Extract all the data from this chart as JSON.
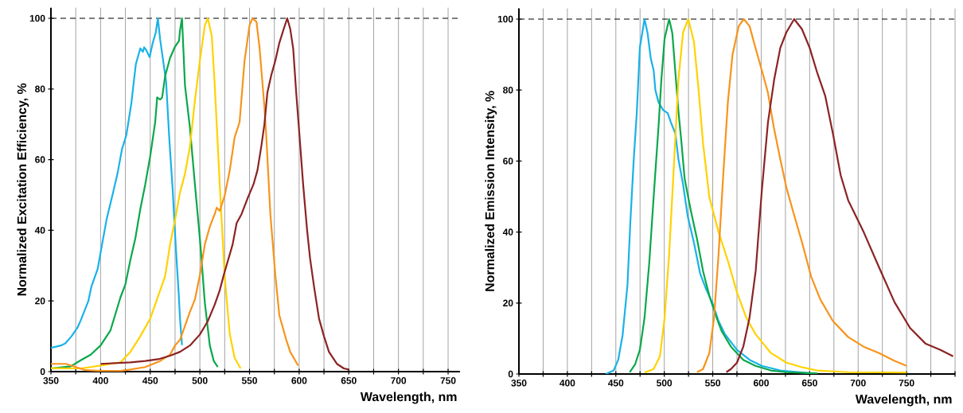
{
  "chart_data": [
    {
      "type": "line",
      "ylabel": "Normalized Excitation Efficiency, %",
      "xlabel": "Wavelength, nm",
      "xlim": [
        350,
        762
      ],
      "ylim": [
        0,
        103
      ],
      "xticks": [
        350,
        {
          "value": 375,
          "label": null
        },
        400,
        {
          "value": 425,
          "label": null
        },
        450,
        {
          "value": 475,
          "label": null
        },
        500,
        {
          "value": 525,
          "label": null
        },
        550,
        {
          "value": 575,
          "label": null
        },
        600,
        {
          "value": 625,
          "label": null
        },
        650,
        {
          "value": 675,
          "label": null
        },
        700,
        {
          "value": 725,
          "label": null
        },
        750
      ],
      "yticks": [
        0,
        20,
        40,
        60,
        80,
        100
      ],
      "grid": "x",
      "ref_lines": [
        {
          "axis": "y",
          "value": 100,
          "line_style": "dashed",
          "color": "#000000"
        }
      ],
      "series": [
        {
          "color": "#1ab2e8",
          "x": [
            350,
            360,
            364.5,
            370.7,
            377,
            380,
            387.7,
            390.7,
            397,
            401.5,
            406,
            412,
            417,
            421.6,
            426,
            431,
            435.5,
            440,
            442.6,
            443.8,
            446,
            449.4,
            452.5,
            455.6,
            457.7,
            460,
            463,
            466,
            469.4,
            472.5,
            475.6,
            478.7,
            480,
            482
          ],
          "values": [
            6.7,
            7.4,
            8,
            10,
            12.6,
            14.5,
            20,
            24,
            29,
            36,
            43,
            50,
            56,
            63,
            67,
            76,
            87,
            91.5,
            90.5,
            91.8,
            91,
            89,
            93,
            96,
            100,
            94,
            88,
            82,
            65,
            52,
            36,
            22,
            15,
            7.5
          ]
        },
        {
          "color": "#0aa84a",
          "x": [
            350,
            370,
            380,
            390,
            400,
            410,
            420,
            425,
            430,
            435,
            440,
            445,
            450,
            455,
            457,
            460,
            462,
            465,
            470,
            475,
            479,
            480,
            482,
            485,
            490,
            495,
            500,
            505,
            510,
            514,
            518
          ],
          "values": [
            0.9,
            1.5,
            3.2,
            4.8,
            7.4,
            11.7,
            21,
            24.7,
            31.6,
            37.7,
            46,
            53,
            61,
            70.6,
            77.6,
            77,
            77.6,
            83.6,
            88.8,
            92,
            93.6,
            96.6,
            100,
            81,
            69,
            53,
            37.7,
            19.5,
            7.4,
            3,
            1.3
          ]
        },
        {
          "color": "#ffd200",
          "x": [
            350,
            370,
            380,
            390,
            400,
            410,
            420,
            430,
            440,
            450,
            460,
            465,
            470,
            475,
            480,
            485,
            490,
            495,
            500,
            505,
            508,
            512,
            515,
            520,
            525,
            530,
            535,
            541
          ],
          "values": [
            1,
            0.9,
            0.9,
            1.3,
            1.7,
            2.2,
            2.6,
            5.6,
            10,
            15,
            23,
            27,
            36,
            43,
            50.7,
            56,
            63.7,
            76.7,
            88,
            98,
            100,
            95,
            81,
            53,
            27,
            10.8,
            3.9,
            0.9
          ]
        },
        {
          "color": "#f7941d",
          "x": [
            350,
            365,
            375,
            385,
            400,
            420,
            430,
            445,
            460,
            470,
            475,
            480,
            490,
            495,
            500,
            505,
            510,
            515,
            517,
            520,
            525,
            530,
            535,
            540,
            545,
            550,
            553,
            557,
            560,
            565,
            567,
            571,
            576,
            580,
            587,
            591,
            599
          ],
          "values": [
            2.2,
            2.2,
            1.3,
            0.4,
            0.2,
            0.2,
            0.6,
            1.3,
            3,
            4.8,
            7.4,
            9,
            16.9,
            20.4,
            27.3,
            36,
            41,
            44.6,
            46.4,
            45.5,
            49.8,
            56.8,
            66.3,
            70.6,
            88,
            98,
            100,
            99,
            92,
            75,
            66,
            44.6,
            27.3,
            16,
            9,
            5.6,
            1.7
          ]
        },
        {
          "color": "#8b2323",
          "x": [
            400,
            430,
            445,
            458,
            470,
            480,
            490,
            500,
            508,
            515,
            520,
            524,
            533,
            537,
            542,
            548,
            554,
            558,
            562,
            565,
            568,
            572,
            576,
            580,
            584,
            588,
            591,
            594,
            597,
            600,
            604,
            608,
            611,
            615,
            620,
            625,
            630,
            638,
            645,
            650
          ],
          "values": [
            2.2,
            2.6,
            3,
            3.5,
            4.5,
            5.6,
            7.4,
            10.5,
            14.3,
            19,
            23,
            27.3,
            36,
            42,
            44.6,
            49,
            53,
            57,
            64,
            70,
            79,
            84,
            88,
            93,
            96.6,
            100,
            97,
            91.4,
            79,
            68,
            53,
            40,
            32,
            24,
            15,
            10,
            5.6,
            2.2,
            0.9,
            0.6
          ]
        }
      ]
    },
    {
      "type": "line",
      "ylabel": "Normalized Emission Intensity, %",
      "xlabel": "Wavelength, nm",
      "xlim": [
        350,
        800
      ],
      "ylim": [
        0,
        103
      ],
      "xticks": [
        350,
        {
          "value": 375,
          "label": null
        },
        400,
        {
          "value": 425,
          "label": null
        },
        450,
        {
          "value": 475,
          "label": null
        },
        500,
        {
          "value": 525,
          "label": null
        },
        550,
        {
          "value": 575,
          "label": null
        },
        600,
        {
          "value": 625,
          "label": null
        },
        650,
        {
          "value": 675,
          "label": null
        },
        700,
        {
          "value": 725,
          "label": null
        },
        750,
        {
          "value": 775,
          "label": null
        },
        {
          "value": 800,
          "label": null
        }
      ],
      "yticks": [
        0,
        20,
        40,
        60,
        80,
        100
      ],
      "grid": "x",
      "ref_lines": [
        {
          "axis": "y",
          "value": 100,
          "line_style": "dashed",
          "color": "#000000"
        }
      ],
      "series": [
        {
          "color": "#1ab2e8",
          "x": [
            439.8,
            447.8,
            452.5,
            457,
            462,
            465,
            468.5,
            471.7,
            474.8,
            479.6,
            482.8,
            486,
            489,
            490.8,
            494,
            498.7,
            503.5,
            506.7,
            511.5,
            514.6,
            519.4,
            524.2,
            530.6,
            537,
            543.3,
            549.7,
            556,
            562.4,
            575,
            588,
            600.6,
            619.7,
            642,
            658
          ],
          "values": [
            0,
            1,
            4,
            11,
            25,
            43,
            60.5,
            74,
            92,
            100,
            96,
            89,
            85.6,
            80,
            76.6,
            74.4,
            73.5,
            71,
            67.7,
            60.5,
            53.4,
            44.4,
            37,
            28.3,
            23.8,
            20,
            14.9,
            11.3,
            6.8,
            4,
            2.3,
            1,
            0.4,
            0
          ]
        },
        {
          "color": "#0aa84a",
          "x": [
            464.3,
            470,
            474.8,
            479.6,
            484.4,
            489,
            494,
            497,
            500.3,
            505,
            508.3,
            511.5,
            514.6,
            517.8,
            521,
            527.4,
            533.8,
            540,
            546.5,
            552.9,
            559,
            568.8,
            581.5,
            594,
            610,
            626,
            658
          ],
          "values": [
            0.5,
            2.8,
            6.8,
            15.8,
            31,
            49.8,
            69.5,
            83,
            94.5,
            100,
            96,
            84.7,
            74,
            65,
            55,
            46,
            38,
            29,
            22,
            16.7,
            12.2,
            7.7,
            4,
            2.3,
            1,
            0.5,
            0.2
          ]
        },
        {
          "color": "#ffd200",
          "x": [
            479.6,
            489,
            495.5,
            500.3,
            505,
            509.9,
            514.6,
            519.4,
            524.8,
            530.6,
            535.4,
            540,
            546.5,
            556,
            565.6,
            575,
            584.7,
            594,
            610,
            626,
            642,
            658,
            689.8,
            750
          ],
          "values": [
            0.4,
            1.4,
            5,
            15.8,
            33.7,
            58.7,
            83,
            96.3,
            100,
            93.6,
            80,
            65,
            49.8,
            40,
            31.9,
            23,
            15.8,
            11.3,
            5.9,
            3.2,
            1.9,
            1,
            0.5,
            0.4
          ]
        },
        {
          "color": "#f7941d",
          "x": [
            533.8,
            540,
            546.5,
            551.3,
            556,
            560.8,
            565.6,
            570.4,
            576.8,
            582,
            588,
            594,
            600.6,
            606.9,
            613,
            619.7,
            626,
            632.5,
            642,
            651.6,
            661,
            674,
            689.8,
            705.7,
            721.7,
            737.6,
            750
          ],
          "values": [
            0.5,
            1.4,
            5.9,
            15.8,
            33.7,
            56,
            76.6,
            90,
            98,
            100,
            98,
            92,
            85.6,
            79.3,
            69.5,
            60.5,
            52.5,
            46.2,
            37.2,
            27.4,
            21,
            14.9,
            10.4,
            7.7,
            5.9,
            3.7,
            2.3
          ]
        },
        {
          "color": "#8b2323",
          "x": [
            564,
            568.8,
            575,
            581.5,
            587.9,
            594.3,
            600.6,
            607,
            613.4,
            619.7,
            626,
            634,
            642,
            650,
            658,
            666,
            674,
            682,
            689.8,
            705.7,
            721.7,
            737.6,
            753.5,
            769.4,
            785,
            798
          ],
          "values": [
            0.5,
            1.4,
            3.2,
            7.7,
            15.8,
            29,
            51.6,
            71,
            83,
            91.9,
            96.3,
            100,
            97.2,
            91.9,
            84.7,
            78.4,
            67.7,
            56,
            48.9,
            40,
            30,
            20.2,
            13,
            8.6,
            6.8,
            5
          ]
        }
      ]
    }
  ]
}
